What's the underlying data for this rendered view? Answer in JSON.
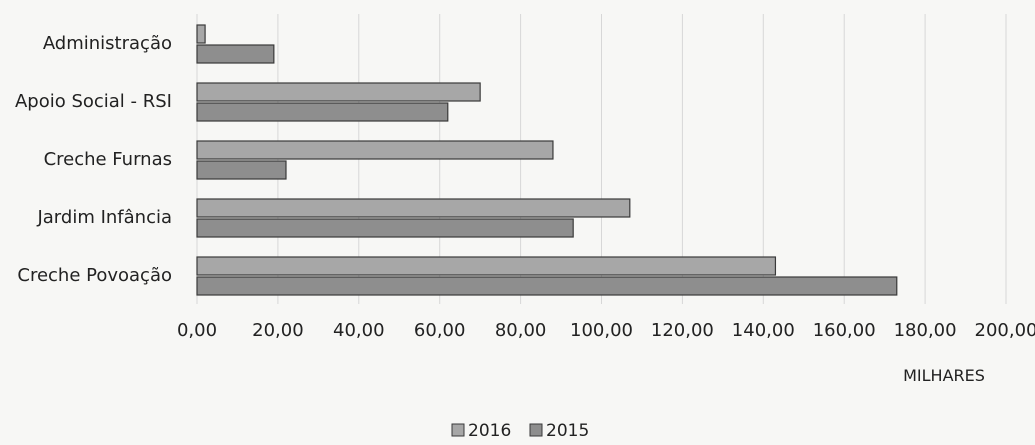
{
  "chart_data": {
    "type": "bar",
    "orientation": "horizontal",
    "categories": [
      "Administração",
      "Apoio Social - RSI",
      "Creche Furnas",
      "Jardim Infância",
      "Creche Povoação"
    ],
    "series": [
      {
        "name": "2016",
        "values": [
          2,
          70,
          88,
          107,
          143
        ],
        "color": "#a7a7a7"
      },
      {
        "name": "2015",
        "values": [
          19,
          62,
          22,
          93,
          173
        ],
        "color": "#8e8e8e"
      }
    ],
    "xlim": [
      0,
      200
    ],
    "ticks": [
      "0,00",
      "20,00",
      "40,00",
      "60,00",
      "80,00",
      "100,00",
      "120,00",
      "140,00",
      "160,00",
      "180,00",
      "200,00"
    ],
    "xlabel": "MILHARES",
    "legend_position": "bottom",
    "grid": true,
    "colors": {
      "gridline": "#d7d7d7",
      "bar_outline": "#3a3a3a"
    }
  }
}
